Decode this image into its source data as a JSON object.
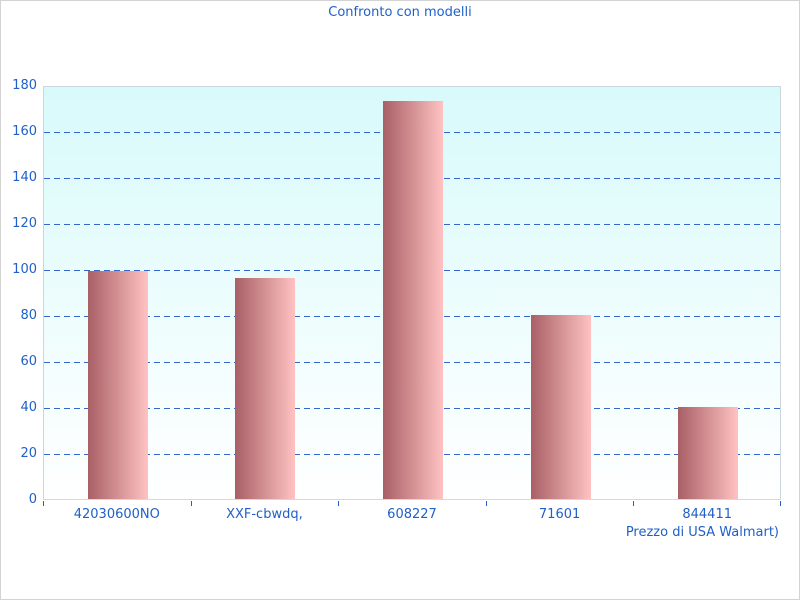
{
  "page": {
    "background": "#ffffff",
    "border_color": "#d3d3d3"
  },
  "chart_data": {
    "type": "bar",
    "title": "Confronto con modelli",
    "categories": [
      "42030600NO",
      "XXF-cbwdq,",
      "608227",
      "71601",
      "844411"
    ],
    "values": [
      99,
      96,
      173,
      80,
      40
    ],
    "xlabel": "Prezzo di USA Walmart)",
    "ylabel": "",
    "ylim": [
      0,
      180
    ],
    "yticks": [
      0,
      20,
      40,
      60,
      80,
      100,
      120,
      140,
      160,
      180
    ],
    "grid": "horizontal-dashed",
    "legend": "none",
    "colors": {
      "text": "#2060c8",
      "gridline": "#3366cc",
      "bar_gradient_left": "#a86066",
      "bar_gradient_right": "#ffc2c2",
      "plot_bg_top": "#d8fafb",
      "plot_bg_bottom": "#ffffff",
      "plot_border": "#ccd6dc",
      "axis_line": "#d8d8d8"
    }
  }
}
